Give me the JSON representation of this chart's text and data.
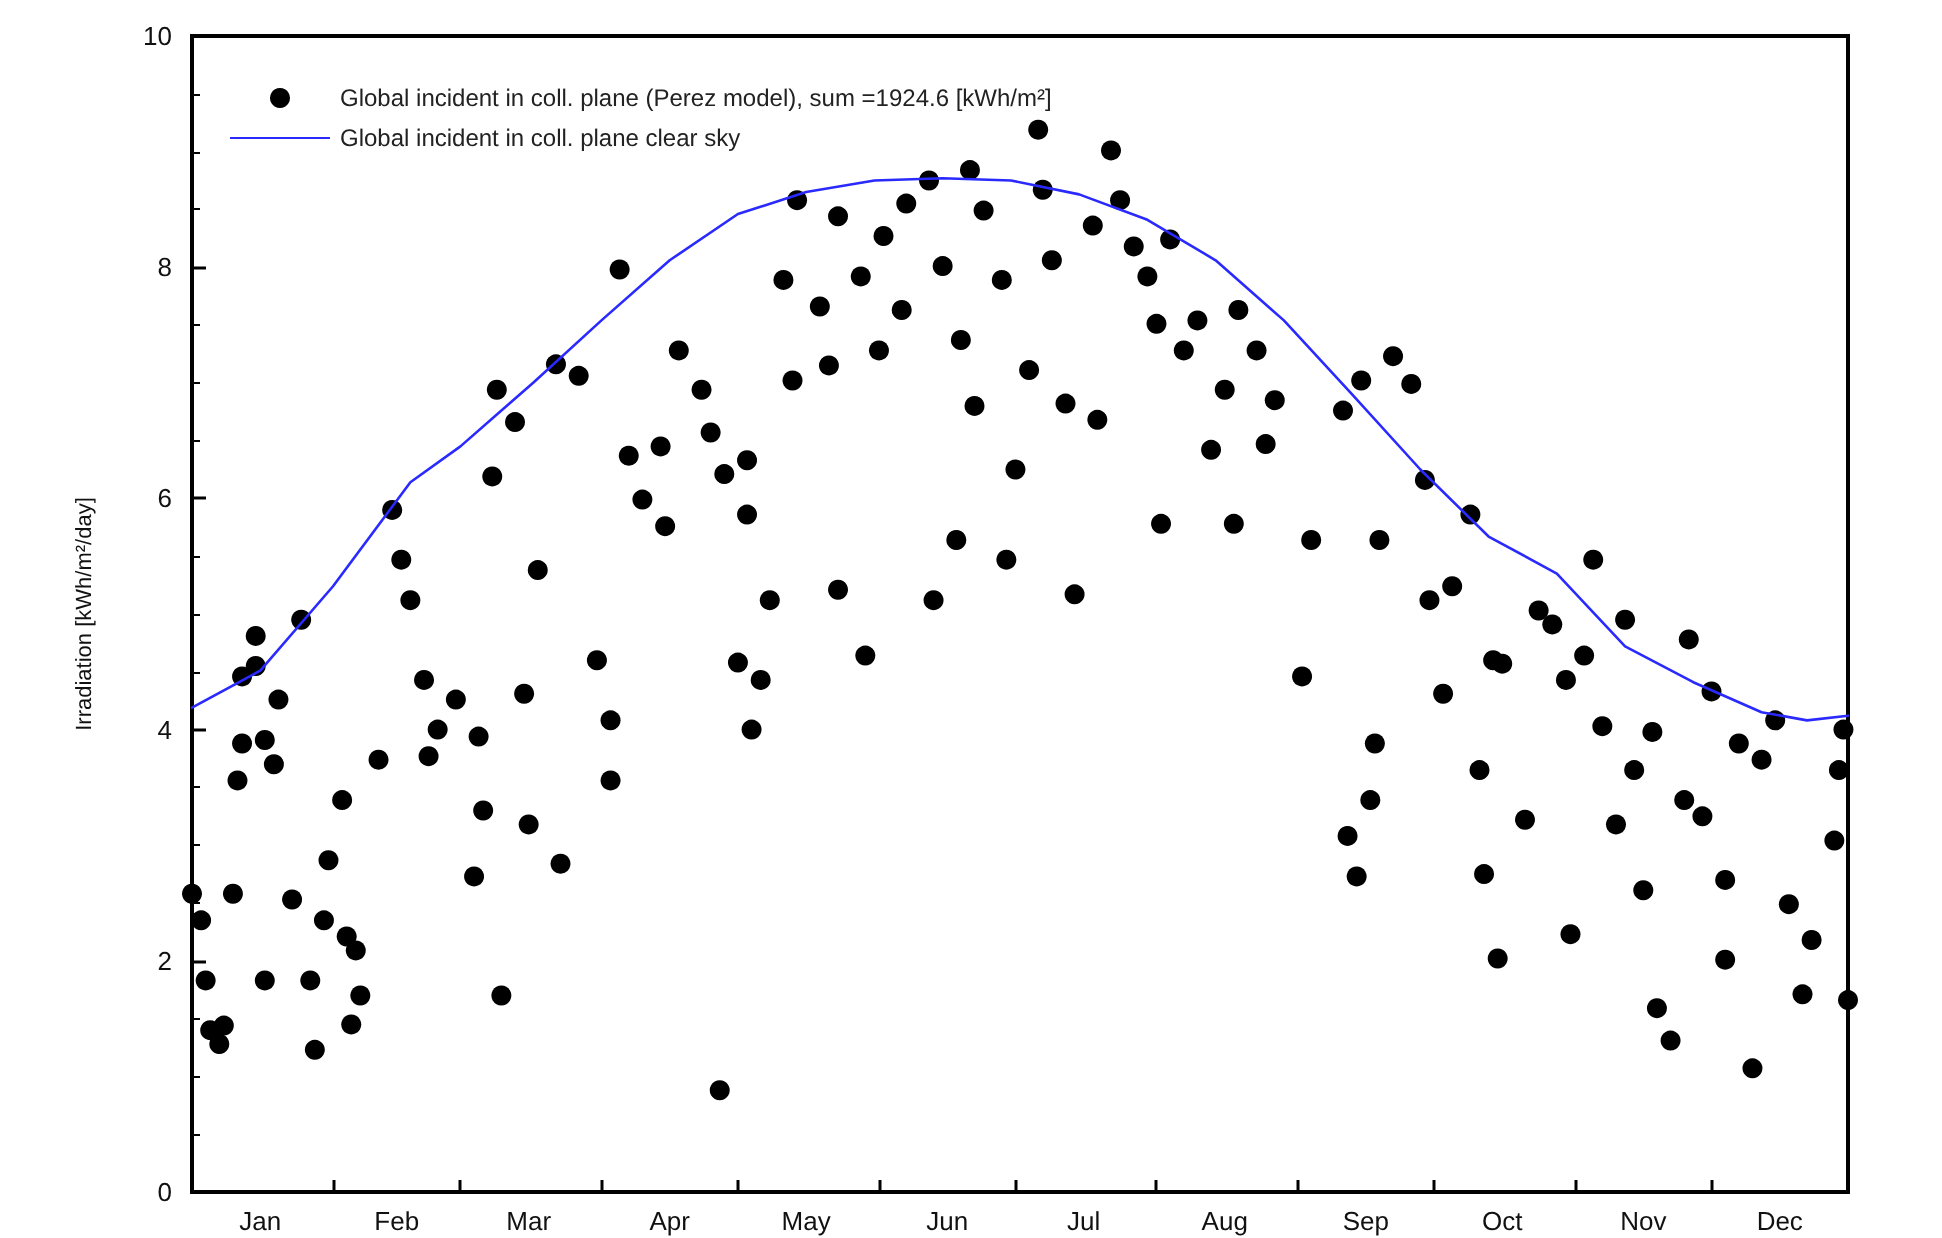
{
  "chart_data": {
    "type": "scatter",
    "ylabel": "Irradiation [kWh/m²/day]",
    "xlim": [
      "--01-01",
      "--12-31"
    ],
    "ylim": [
      0,
      10
    ],
    "yticks": [
      0,
      2,
      4,
      6,
      8,
      10
    ],
    "xticks": [
      {
        "value": "--01-16",
        "label": "Jan"
      },
      {
        "value": "--02-01",
        "label": null
      },
      {
        "value": "--02-15",
        "label": "Feb"
      },
      {
        "value": "--03-01",
        "label": null
      },
      {
        "value": "--03-16",
        "label": "Mar"
      },
      {
        "value": "--04-01",
        "label": null
      },
      {
        "value": "--04-16",
        "label": "Apr"
      },
      {
        "value": "--05-01",
        "label": null
      },
      {
        "value": "--05-16",
        "label": "May"
      },
      {
        "value": "--06-01",
        "label": null
      },
      {
        "value": "--06-16",
        "label": "Jun"
      },
      {
        "value": "--07-01",
        "label": null
      },
      {
        "value": "--07-16",
        "label": "Jul"
      },
      {
        "value": "--08-01",
        "label": null
      },
      {
        "value": "--08-16",
        "label": "Aug"
      },
      {
        "value": "--09-01",
        "label": null
      },
      {
        "value": "--09-16",
        "label": "Sep"
      },
      {
        "value": "--10-01",
        "label": null
      },
      {
        "value": "--10-16",
        "label": "Oct"
      },
      {
        "value": "--11-01",
        "label": null
      },
      {
        "value": "--11-16",
        "label": "Nov"
      },
      {
        "value": "--12-01",
        "label": null
      },
      {
        "value": "--12-16",
        "label": "Dec"
      }
    ],
    "grid": false,
    "legend": "top left",
    "series": [
      {
        "name": "Global incident in coll. plane (Perez model), sum =1924.6 [kWh/m²]",
        "color": "#000000",
        "marker": "circle",
        "x": [
          "--01-01",
          "--01-03",
          "--01-04",
          "--01-05",
          "--01-07",
          "--01-08",
          "--01-10",
          "--01-11",
          "--01-12",
          "--01-12",
          "--01-15",
          "--01-15",
          "--01-17",
          "--01-19",
          "--01-20",
          "--01-25",
          "--01-23",
          "--01-17",
          "--01-27",
          "--01-28",
          "--01-30",
          "--01-31",
          "--02-03",
          "--02-04",
          "--02-06",
          "--02-07",
          "--02-05",
          "--02-11",
          "--02-14",
          "--02-16",
          "--02-18",
          "--02-21",
          "--02-22",
          "--02-24",
          "--02-28",
          "--03-05",
          "--03-06",
          "--03-04",
          "--03-10",
          "--03-09",
          "--03-08",
          "--03-13",
          "--03-15",
          "--03-16",
          "--03-18",
          "--03-22",
          "--03-23",
          "--03-27",
          "--04-03",
          "--04-03",
          "--03-31",
          "--04-05",
          "--04-07",
          "--04-10",
          "--04-14",
          "--04-15",
          "--04-18",
          "--04-23",
          "--04-25",
          "--04-27",
          "--04-28",
          "--05-03",
          "--05-03",
          "--05-01",
          "--05-04",
          "--05-06",
          "--05-08",
          "--05-13",
          "--05-11",
          "--05-14",
          "--05-19",
          "--05-21",
          "--05-23",
          "--05-23",
          "--05-28",
          "--05-29",
          "--06-01",
          "--06-02",
          "--06-06",
          "--06-07",
          "--06-12",
          "--06-13",
          "--06-15",
          "--06-18",
          "--06-19",
          "--06-21",
          "--06-24",
          "--06-22",
          "--06-28",
          "--06-29",
          "--07-01",
          "--07-04",
          "--07-06",
          "--07-07",
          "--07-09",
          "--07-12",
          "--07-14",
          "--07-18",
          "--07-19",
          "--07-22",
          "--07-24",
          "--07-27",
          "--07-30",
          "--08-01",
          "--08-04",
          "--08-02",
          "--08-07",
          "--08-10",
          "--08-13",
          "--08-16",
          "--08-19",
          "--08-18",
          "--08-23",
          "--08-25",
          "--08-27",
          "--09-02",
          "--09-04",
          "--09-11",
          "--09-12",
          "--09-14",
          "--09-15",
          "--09-19",
          "--09-22",
          "--09-18",
          "--09-17",
          "--09-26",
          "--09-29",
          "--09-30",
          "--10-03",
          "--10-05",
          "--10-09",
          "--10-11",
          "--10-12",
          "--10-14",
          "--10-16",
          "--10-15",
          "--10-21",
          "--10-24",
          "--10-27",
          "--10-30",
          "--11-03",
          "--11-05",
          "--10-31",
          "--11-07",
          "--11-10",
          "--11-12",
          "--11-14",
          "--11-16",
          "--11-18",
          "--11-19",
          "--11-22",
          "--11-25",
          "--11-26",
          "--11-29",
          "--12-01",
          "--12-04",
          "--12-04",
          "--12-10",
          "--12-07",
          "--12-12",
          "--12-15",
          "--12-18",
          "--12-21",
          "--12-23",
          "--12-28",
          "--12-29",
          "--12-31",
          "--12-30"
        ],
        "values": [
          2.58,
          2.35,
          1.83,
          1.4,
          1.28,
          1.44,
          2.58,
          3.56,
          3.88,
          4.46,
          4.81,
          4.55,
          3.91,
          3.7,
          4.26,
          4.95,
          2.53,
          1.83,
          1.83,
          1.23,
          2.35,
          2.87,
          3.39,
          2.21,
          2.09,
          1.7,
          1.45,
          3.74,
          5.9,
          5.47,
          5.12,
          4.43,
          3.77,
          4.0,
          4.26,
          3.94,
          3.3,
          2.73,
          1.7,
          6.94,
          6.19,
          6.66,
          4.31,
          3.18,
          5.38,
          7.16,
          2.84,
          7.06,
          4.08,
          3.56,
          4.6,
          7.98,
          6.37,
          5.99,
          6.45,
          5.76,
          7.28,
          6.94,
          6.57,
          0.88,
          6.21,
          6.33,
          5.86,
          4.58,
          4.0,
          4.43,
          5.12,
          7.02,
          7.89,
          8.58,
          7.66,
          7.15,
          8.44,
          5.21,
          7.92,
          4.64,
          7.28,
          8.27,
          7.63,
          8.55,
          8.75,
          5.12,
          8.01,
          5.64,
          7.37,
          8.84,
          8.49,
          6.8,
          7.89,
          5.47,
          6.25,
          7.11,
          9.19,
          8.67,
          8.06,
          6.82,
          5.17,
          8.36,
          6.68,
          9.01,
          8.58,
          8.18,
          7.92,
          7.51,
          8.24,
          5.78,
          7.28,
          7.54,
          6.42,
          6.94,
          7.63,
          5.78,
          7.28,
          6.47,
          6.85,
          4.46,
          5.64,
          6.76,
          3.08,
          2.73,
          7.02,
          5.64,
          7.23,
          3.88,
          3.39,
          6.99,
          6.16,
          5.12,
          4.31,
          5.24,
          5.86,
          3.65,
          2.75,
          4.6,
          4.57,
          2.02,
          3.22,
          5.03,
          4.91,
          4.43,
          4.64,
          5.47,
          2.23,
          4.03,
          3.18,
          4.95,
          3.65,
          2.61,
          3.98,
          1.59,
          1.31,
          3.39,
          4.78,
          3.25,
          4.33,
          2.01,
          2.7,
          1.07,
          3.88,
          3.74,
          4.08,
          2.49,
          1.71,
          2.18,
          3.04,
          3.65,
          1.66,
          4.0
        ]
      },
      {
        "type": "line",
        "name": "Global incident in coll. plane clear sky",
        "color": "#2a2aff",
        "marker": "none",
        "line_style": "solid",
        "x": [
          "--01-01",
          "--01-16",
          "--02-01",
          "--02-18",
          "--03-01",
          "--03-17",
          "--04-01",
          "--04-16",
          "--05-01",
          "--05-16",
          "--05-31",
          "--06-15",
          "--06-30",
          "--07-15",
          "--07-30",
          "--08-14",
          "--08-29",
          "--09-13",
          "--09-28",
          "--10-13",
          "--10-28",
          "--11-12",
          "--11-27",
          "--12-12",
          "--12-22",
          "--12-31"
        ],
        "values": [
          4.19,
          4.51,
          5.24,
          6.14,
          6.45,
          7.0,
          7.54,
          8.06,
          8.46,
          8.65,
          8.75,
          8.77,
          8.75,
          8.63,
          8.41,
          8.06,
          7.54,
          6.9,
          6.25,
          5.67,
          5.35,
          4.72,
          4.41,
          4.15,
          4.08,
          4.12
        ]
      }
    ]
  }
}
